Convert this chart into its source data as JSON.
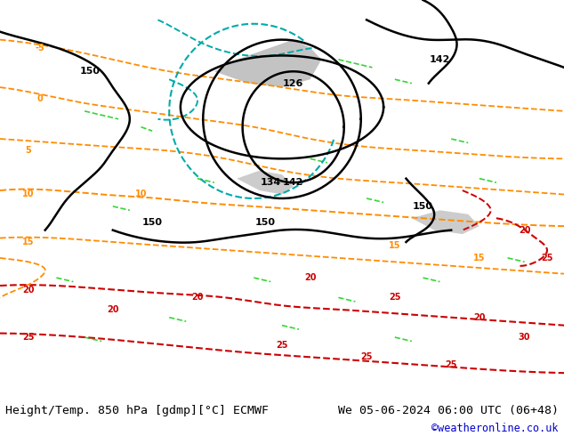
{
  "title_left": "Height/Temp. 850 hPa [gdmp][°C] ECMWF",
  "title_right": "We 05-06-2024 06:00 UTC (06+48)",
  "credit": "©weatheronline.co.uk",
  "bg_color": "#b5d9b5",
  "fig_width": 6.34,
  "fig_height": 4.9,
  "dpi": 100,
  "bottom_bar_color": "#e8e8e8",
  "title_fontsize": 9.5,
  "credit_fontsize": 8.5,
  "credit_color": "#0000cc",
  "label_fontsize": 8,
  "contour_lw": 1.8,
  "map_bg": "#b5d9b5",
  "grey_color": "#aaaaaa",
  "white_sea": "#ffffff",
  "ocean_color": "#d0e8f0"
}
